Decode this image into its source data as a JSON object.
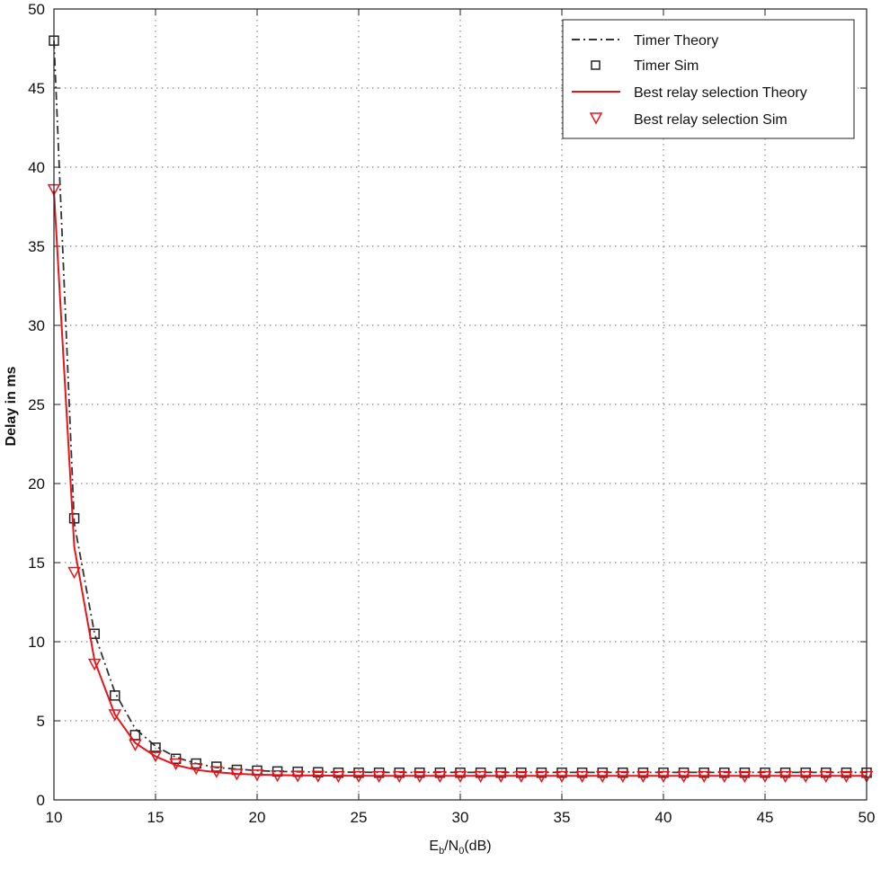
{
  "chart_data": {
    "type": "line",
    "xlabel": {
      "base": "E",
      "sub1": "b",
      "mid": "/N",
      "sub2": "0",
      "tail": "(dB)"
    },
    "ylabel": "Delay in ms",
    "xlim": [
      10,
      50
    ],
    "ylim": [
      0,
      50
    ],
    "xticks": [
      "10",
      "15",
      "20",
      "25",
      "30",
      "35",
      "40",
      "45",
      "50"
    ],
    "yticks": [
      "0",
      "5",
      "10",
      "15",
      "20",
      "25",
      "30",
      "35",
      "40",
      "45",
      "50"
    ],
    "grid": true,
    "legend_position": "top-right",
    "x": [
      10,
      11,
      12,
      13,
      14,
      15,
      16,
      17,
      18,
      19,
      20,
      21,
      22,
      23,
      24,
      25,
      26,
      27,
      28,
      29,
      30,
      31,
      32,
      33,
      34,
      35,
      36,
      37,
      38,
      39,
      40,
      41,
      42,
      43,
      44,
      45,
      46,
      47,
      48,
      49,
      50
    ],
    "series": [
      {
        "name": "Timer Theory",
        "style": "dash-dot",
        "color": "#333333",
        "values": [
          48,
          17.5,
          10.5,
          6.8,
          4.5,
          3.4,
          2.7,
          2.3,
          2.05,
          1.95,
          1.85,
          1.8,
          1.78,
          1.76,
          1.75,
          1.75,
          1.74,
          1.74,
          1.74,
          1.74,
          1.74,
          1.74,
          1.74,
          1.74,
          1.74,
          1.74,
          1.74,
          1.74,
          1.74,
          1.74,
          1.74,
          1.74,
          1.74,
          1.74,
          1.74,
          1.74,
          1.74,
          1.74,
          1.74,
          1.74,
          1.74
        ]
      },
      {
        "name": "Timer Sim",
        "style": "square-marker",
        "color": "#222222",
        "values": [
          48,
          17.8,
          10.5,
          6.6,
          4.1,
          3.3,
          2.6,
          2.3,
          2.1,
          1.9,
          1.85,
          1.8,
          1.78,
          1.75,
          1.72,
          1.72,
          1.72,
          1.72,
          1.72,
          1.72,
          1.72,
          1.72,
          1.72,
          1.72,
          1.72,
          1.72,
          1.72,
          1.72,
          1.72,
          1.72,
          1.72,
          1.72,
          1.72,
          1.72,
          1.72,
          1.72,
          1.72,
          1.72,
          1.72,
          1.72,
          1.72
        ]
      },
      {
        "name": "Best relay selection Theory",
        "style": "solid",
        "color": "#e8141a",
        "values": [
          38.5,
          16,
          8.8,
          5.4,
          3.6,
          2.75,
          2.2,
          1.9,
          1.75,
          1.65,
          1.6,
          1.57,
          1.55,
          1.54,
          1.53,
          1.53,
          1.52,
          1.52,
          1.52,
          1.52,
          1.52,
          1.52,
          1.52,
          1.52,
          1.52,
          1.52,
          1.52,
          1.52,
          1.52,
          1.52,
          1.52,
          1.52,
          1.52,
          1.52,
          1.52,
          1.52,
          1.52,
          1.52,
          1.52,
          1.52,
          1.52
        ]
      },
      {
        "name": "Best relay selection Sim",
        "style": "triangle-down-marker",
        "color": "#e8141a",
        "values": [
          38.6,
          14.4,
          8.6,
          5.4,
          3.5,
          2.8,
          2.3,
          2.0,
          1.8,
          1.65,
          1.6,
          1.55,
          1.53,
          1.52,
          1.5,
          1.5,
          1.5,
          1.5,
          1.5,
          1.5,
          1.5,
          1.5,
          1.5,
          1.5,
          1.5,
          1.5,
          1.5,
          1.5,
          1.5,
          1.5,
          1.5,
          1.5,
          1.5,
          1.5,
          1.5,
          1.5,
          1.5,
          1.5,
          1.5,
          1.5,
          1.5
        ]
      }
    ]
  }
}
